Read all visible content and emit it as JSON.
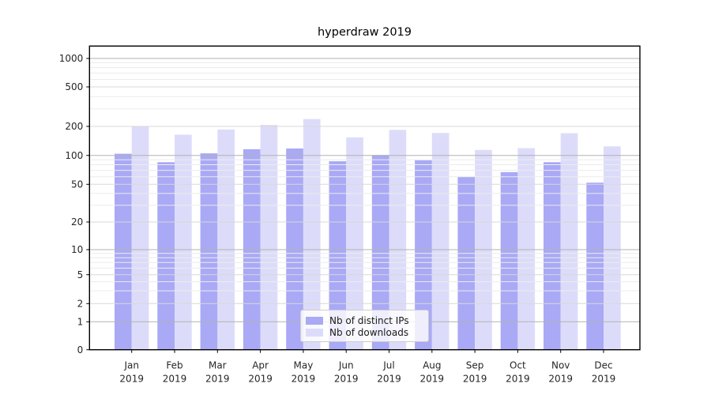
{
  "chart_data": {
    "type": "bar",
    "title": "hyperdraw 2019",
    "categories": [
      "Jan 2019",
      "Feb 2019",
      "Mar 2019",
      "Apr 2019",
      "May 2019",
      "Jun 2019",
      "Jul 2019",
      "Aug 2019",
      "Sep 2019",
      "Oct 2019",
      "Nov 2019",
      "Dec 2019"
    ],
    "series": [
      {
        "name": "Nb of distinct IPs",
        "color": "#a9a9f6",
        "values": [
          104,
          85,
          105,
          116,
          118,
          87,
          101,
          89,
          60,
          67,
          85,
          52
        ]
      },
      {
        "name": "Nb of downloads",
        "color": "#dcdcfa",
        "values": [
          198,
          164,
          186,
          207,
          237,
          154,
          184,
          171,
          114,
          119,
          170,
          124
        ]
      }
    ],
    "yscale": "symlog",
    "yticks": [
      0,
      1,
      2,
      5,
      10,
      20,
      50,
      100,
      200,
      500,
      1000
    ],
    "xlabel": "",
    "ylabel": "",
    "grid": "horizontal",
    "legend_position": "lower center inside plot",
    "colors": {
      "bar_ips": "#a9a9f6",
      "bar_downloads": "#dcdcfa",
      "grid_decade": "#b2b2b2",
      "grid_labeled": "#d8d8d8",
      "grid_minor": "#ececec",
      "axis_text": "#262626",
      "spine": "#000000"
    }
  }
}
